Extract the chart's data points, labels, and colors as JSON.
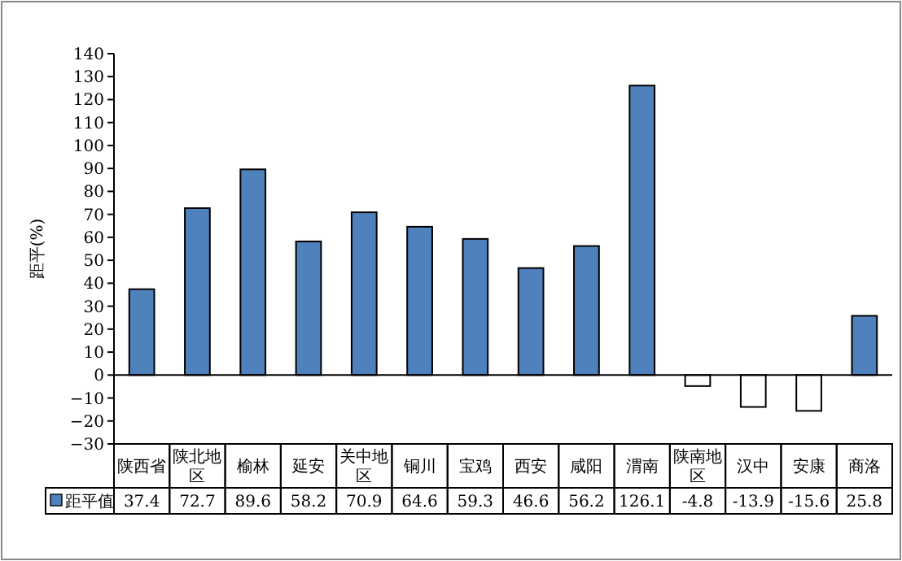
{
  "chart_data": {
    "type": "bar",
    "ylabel": "距平(%)",
    "categories": [
      "陕西省",
      "陕北地区",
      "榆林",
      "延安",
      "关中地区",
      "铜川",
      "宝鸡",
      "西安",
      "咸阳",
      "渭南",
      "陕南地区",
      "汉中",
      "安康",
      "商洛"
    ],
    "series": [
      {
        "name": "距平值",
        "color": "#4f81bd",
        "colors": [
          "#4f81bd",
          "#4f81bd",
          "#4f81bd",
          "#4f81bd",
          "#4f81bd",
          "#4f81bd",
          "#4f81bd",
          "#4f81bd",
          "#4f81bd",
          "#4f81bd",
          "#ffffff",
          "#ffffff",
          "#ffffff",
          "#4f81bd"
        ],
        "values": [
          37.4,
          72.7,
          89.6,
          58.2,
          70.9,
          64.6,
          59.3,
          46.6,
          56.2,
          126.1,
          -4.8,
          -13.9,
          -15.6,
          25.8
        ]
      }
    ],
    "ylim": [
      -30,
      140
    ],
    "yticks": [
      -30,
      -20,
      -10,
      0,
      10,
      20,
      30,
      40,
      50,
      60,
      70,
      80,
      90,
      100,
      110,
      120,
      130,
      140
    ],
    "data_labels": true
  }
}
